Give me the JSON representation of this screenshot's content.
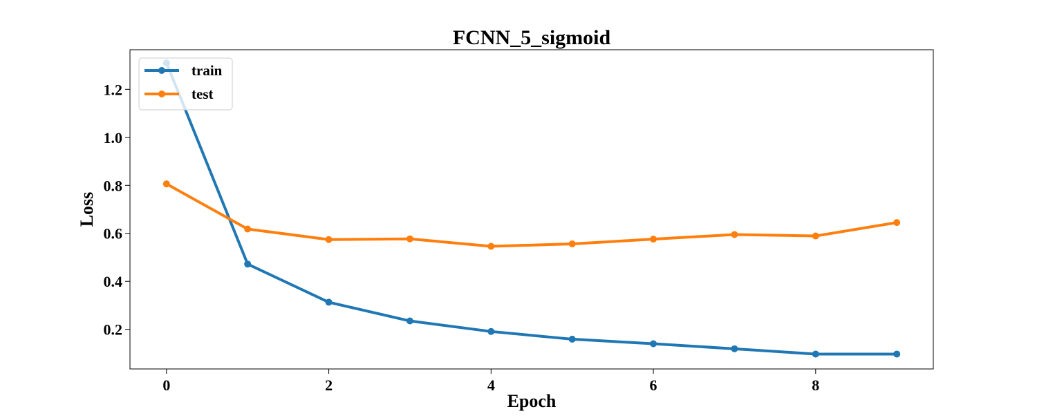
{
  "chart_data": {
    "type": "line",
    "title": "FCNN_5_sigmoid",
    "xlabel": "Epoch",
    "ylabel": "Loss",
    "x": [
      0,
      1,
      2,
      3,
      4,
      5,
      6,
      7,
      8,
      9
    ],
    "xlim": [
      -0.45,
      9.45
    ],
    "ylim": [
      0.035,
      1.365
    ],
    "x_ticks": [
      0,
      2,
      4,
      6,
      8
    ],
    "x_tick_labels": [
      "0",
      "2",
      "4",
      "6",
      "8"
    ],
    "y_ticks": [
      0.2,
      0.4,
      0.6,
      0.8,
      1.0,
      1.2
    ],
    "y_tick_labels": [
      "0.2",
      "0.4",
      "0.6",
      "0.8",
      "1.0",
      "1.2"
    ],
    "grid": false,
    "legend_position": "top-left",
    "series": [
      {
        "name": "train",
        "color": "#1f77b4",
        "values": [
          1.31,
          0.472,
          0.313,
          0.235,
          0.191,
          0.159,
          0.14,
          0.119,
          0.097,
          0.097
        ]
      },
      {
        "name": "test",
        "color": "#ff7f0e",
        "values": [
          0.806,
          0.618,
          0.574,
          0.577,
          0.546,
          0.556,
          0.576,
          0.595,
          0.589,
          0.645
        ]
      }
    ]
  }
}
